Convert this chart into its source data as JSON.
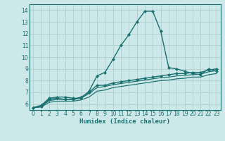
{
  "title": "",
  "xlabel": "Humidex (Indice chaleur)",
  "background_color": "#cce8e8",
  "grid_color": "#aacccc",
  "line_color": "#1a7070",
  "x_values": [
    0,
    1,
    2,
    3,
    4,
    5,
    6,
    7,
    8,
    9,
    10,
    11,
    12,
    13,
    14,
    15,
    16,
    17,
    18,
    19,
    20,
    21,
    22,
    23
  ],
  "series1": [
    5.7,
    5.9,
    6.5,
    6.6,
    6.6,
    6.5,
    6.5,
    7.1,
    8.4,
    8.7,
    9.8,
    11.0,
    11.9,
    13.0,
    13.9,
    13.9,
    12.2,
    9.1,
    9.0,
    8.8,
    8.6,
    8.5,
    9.0,
    8.8
  ],
  "series2": [
    5.7,
    5.8,
    6.4,
    6.5,
    6.4,
    6.4,
    6.6,
    7.0,
    7.6,
    7.6,
    7.8,
    7.9,
    8.0,
    8.1,
    8.2,
    8.3,
    8.4,
    8.5,
    8.6,
    8.6,
    8.7,
    8.7,
    8.9,
    9.0
  ],
  "series3": [
    5.7,
    5.8,
    6.3,
    6.4,
    6.4,
    6.4,
    6.5,
    6.9,
    7.4,
    7.5,
    7.65,
    7.75,
    7.85,
    7.95,
    8.05,
    8.15,
    8.25,
    8.3,
    8.4,
    8.45,
    8.5,
    8.55,
    8.75,
    8.85
  ],
  "series4": [
    5.7,
    5.75,
    6.15,
    6.25,
    6.25,
    6.25,
    6.35,
    6.6,
    7.1,
    7.2,
    7.4,
    7.5,
    7.6,
    7.7,
    7.8,
    7.9,
    8.0,
    8.05,
    8.15,
    8.2,
    8.3,
    8.3,
    8.5,
    8.6
  ],
  "ylim": [
    5.5,
    14.5
  ],
  "xlim": [
    -0.5,
    23.5
  ],
  "yticks": [
    6,
    7,
    8,
    9,
    10,
    11,
    12,
    13,
    14
  ],
  "xticks": [
    0,
    1,
    2,
    3,
    4,
    5,
    6,
    7,
    8,
    9,
    10,
    11,
    12,
    13,
    14,
    15,
    16,
    17,
    18,
    19,
    20,
    21,
    22,
    23
  ],
  "marker_size": 2.5,
  "linewidth": 1.0
}
